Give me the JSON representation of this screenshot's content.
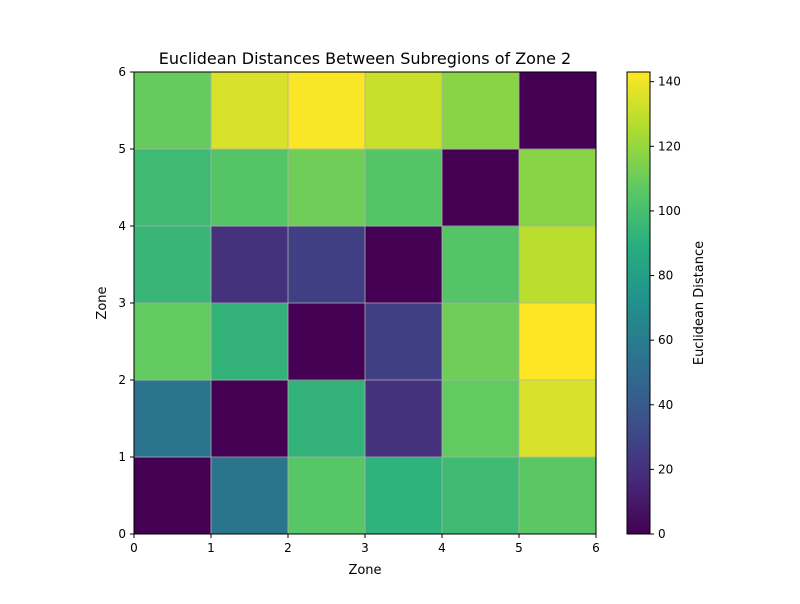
{
  "chart_data": {
    "type": "heatmap",
    "title": "Euclidean Distances Between Subregions of Zone 2",
    "xlabel": "Zone",
    "ylabel": "Zone",
    "xlim": [
      0,
      6
    ],
    "ylim": [
      0,
      6
    ],
    "x_ticks": [
      "0",
      "1",
      "2",
      "3",
      "4",
      "5",
      "6"
    ],
    "y_ticks": [
      "0",
      "1",
      "2",
      "3",
      "4",
      "5",
      "6"
    ],
    "colorbar": {
      "label": "Euclidean Distance",
      "range": [
        0,
        143
      ],
      "ticks": [
        "0",
        "20",
        "40",
        "60",
        "80",
        "100",
        "120",
        "140"
      ],
      "tick_values": [
        0,
        20,
        40,
        60,
        80,
        100,
        120,
        140
      ],
      "colormap": "viridis"
    },
    "grid": true,
    "matrix": [
      [
        0,
        55,
        105,
        92,
        97,
        106
      ],
      [
        55,
        0,
        93,
        20,
        108,
        135
      ],
      [
        108,
        93,
        0,
        27,
        111,
        143
      ],
      [
        95,
        20,
        27,
        0,
        104,
        128
      ],
      [
        97,
        104,
        111,
        104,
        0,
        117
      ],
      [
        109,
        135,
        142,
        131,
        117,
        0
      ]
    ]
  }
}
